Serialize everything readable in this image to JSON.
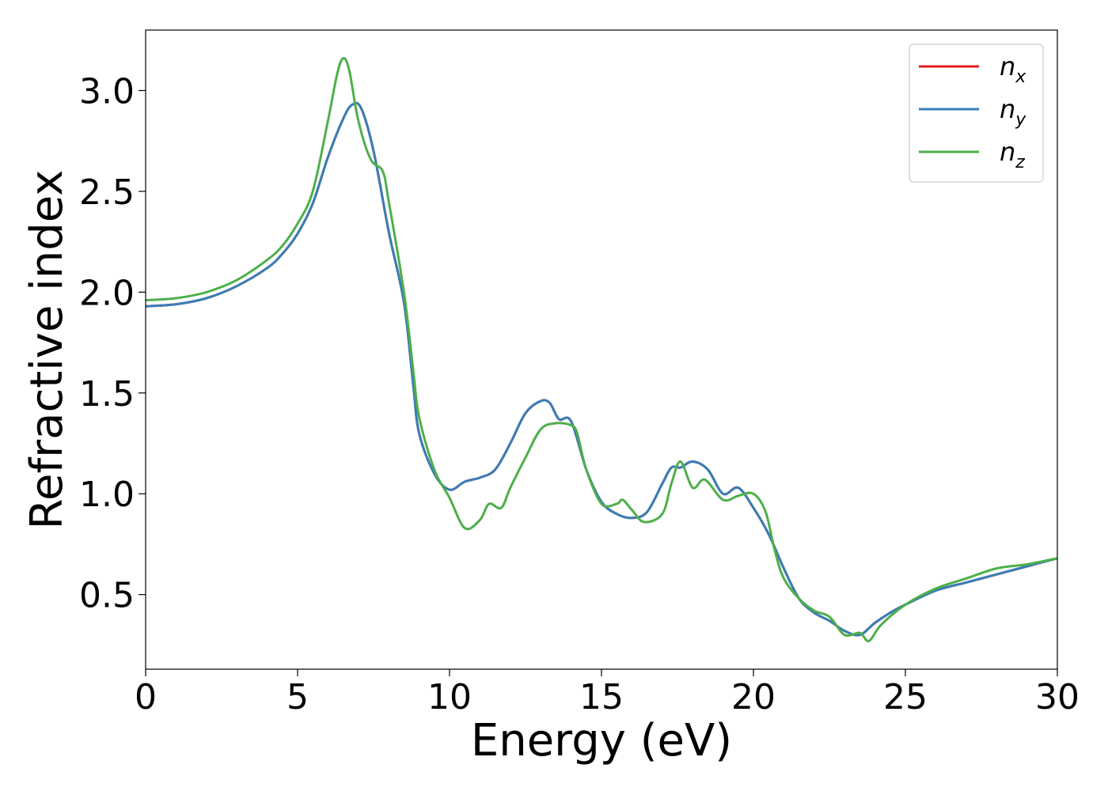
{
  "chart_data": {
    "type": "line",
    "xlabel": "Energy (eV)",
    "ylabel": "Refractive index",
    "xlim": [
      0,
      30
    ],
    "ylim": [
      0.13,
      3.3
    ],
    "x_ticks": [
      "0",
      "5",
      "10",
      "15",
      "20",
      "25",
      "30"
    ],
    "y_ticks": [
      "0.5",
      "1.0",
      "1.5",
      "2.0",
      "2.5",
      "3.0"
    ],
    "grid": false,
    "legend_position": "top-right",
    "series": [
      {
        "name": "n_x",
        "label_base": "n",
        "label_sub": "x",
        "color": "#e41a1c",
        "points": [
          [
            0,
            1.93
          ],
          [
            1,
            1.94
          ],
          [
            2,
            1.97
          ],
          [
            3,
            2.03
          ],
          [
            4,
            2.12
          ],
          [
            4.5,
            2.19
          ],
          [
            5,
            2.29
          ],
          [
            5.5,
            2.44
          ],
          [
            6,
            2.67
          ],
          [
            6.5,
            2.86
          ],
          [
            6.8,
            2.93
          ],
          [
            7.1,
            2.91
          ],
          [
            7.5,
            2.7
          ],
          [
            8,
            2.3
          ],
          [
            8.5,
            1.95
          ],
          [
            8.8,
            1.55
          ],
          [
            9,
            1.3
          ],
          [
            9.5,
            1.1
          ],
          [
            10,
            1.02
          ],
          [
            10.5,
            1.06
          ],
          [
            11,
            1.08
          ],
          [
            11.5,
            1.12
          ],
          [
            12,
            1.25
          ],
          [
            12.5,
            1.4
          ],
          [
            13,
            1.46
          ],
          [
            13.3,
            1.45
          ],
          [
            13.6,
            1.37
          ],
          [
            14,
            1.36
          ],
          [
            14.5,
            1.12
          ],
          [
            15,
            0.96
          ],
          [
            15.5,
            0.9
          ],
          [
            16,
            0.88
          ],
          [
            16.5,
            0.91
          ],
          [
            17,
            1.05
          ],
          [
            17.3,
            1.13
          ],
          [
            17.6,
            1.13
          ],
          [
            18,
            1.16
          ],
          [
            18.5,
            1.12
          ],
          [
            19,
            1.0
          ],
          [
            19.5,
            1.03
          ],
          [
            20,
            0.93
          ],
          [
            20.5,
            0.8
          ],
          [
            21,
            0.63
          ],
          [
            21.5,
            0.48
          ],
          [
            22,
            0.41
          ],
          [
            22.5,
            0.37
          ],
          [
            23,
            0.32
          ],
          [
            23.5,
            0.3
          ],
          [
            24,
            0.36
          ],
          [
            24.5,
            0.41
          ],
          [
            25,
            0.45
          ],
          [
            26,
            0.52
          ],
          [
            27,
            0.56
          ],
          [
            28,
            0.6
          ],
          [
            29,
            0.64
          ],
          [
            30,
            0.68
          ]
        ]
      },
      {
        "name": "n_y",
        "label_base": "n",
        "label_sub": "y",
        "color": "#377eb8",
        "points": [
          [
            0,
            1.93
          ],
          [
            1,
            1.94
          ],
          [
            2,
            1.97
          ],
          [
            3,
            2.03
          ],
          [
            4,
            2.12
          ],
          [
            4.5,
            2.19
          ],
          [
            5,
            2.29
          ],
          [
            5.5,
            2.44
          ],
          [
            6,
            2.67
          ],
          [
            6.5,
            2.86
          ],
          [
            6.8,
            2.93
          ],
          [
            7.1,
            2.91
          ],
          [
            7.5,
            2.7
          ],
          [
            8,
            2.3
          ],
          [
            8.5,
            1.95
          ],
          [
            8.8,
            1.55
          ],
          [
            9,
            1.3
          ],
          [
            9.5,
            1.1
          ],
          [
            10,
            1.02
          ],
          [
            10.5,
            1.06
          ],
          [
            11,
            1.08
          ],
          [
            11.5,
            1.12
          ],
          [
            12,
            1.25
          ],
          [
            12.5,
            1.4
          ],
          [
            13,
            1.46
          ],
          [
            13.3,
            1.45
          ],
          [
            13.6,
            1.37
          ],
          [
            14,
            1.36
          ],
          [
            14.5,
            1.12
          ],
          [
            15,
            0.96
          ],
          [
            15.5,
            0.9
          ],
          [
            16,
            0.88
          ],
          [
            16.5,
            0.91
          ],
          [
            17,
            1.05
          ],
          [
            17.3,
            1.13
          ],
          [
            17.6,
            1.13
          ],
          [
            18,
            1.16
          ],
          [
            18.5,
            1.12
          ],
          [
            19,
            1.0
          ],
          [
            19.5,
            1.03
          ],
          [
            20,
            0.93
          ],
          [
            20.5,
            0.8
          ],
          [
            21,
            0.63
          ],
          [
            21.5,
            0.48
          ],
          [
            22,
            0.41
          ],
          [
            22.5,
            0.37
          ],
          [
            23,
            0.32
          ],
          [
            23.5,
            0.3
          ],
          [
            24,
            0.36
          ],
          [
            24.5,
            0.41
          ],
          [
            25,
            0.45
          ],
          [
            26,
            0.52
          ],
          [
            27,
            0.56
          ],
          [
            28,
            0.6
          ],
          [
            29,
            0.64
          ],
          [
            30,
            0.68
          ]
        ]
      },
      {
        "name": "n_z",
        "label_base": "n",
        "label_sub": "z",
        "color": "#4daf4a",
        "points": [
          [
            0,
            1.96
          ],
          [
            1,
            1.97
          ],
          [
            2,
            2.0
          ],
          [
            3,
            2.06
          ],
          [
            4,
            2.16
          ],
          [
            4.5,
            2.23
          ],
          [
            5,
            2.34
          ],
          [
            5.5,
            2.5
          ],
          [
            6,
            2.85
          ],
          [
            6.3,
            3.08
          ],
          [
            6.5,
            3.16
          ],
          [
            6.7,
            3.1
          ],
          [
            7,
            2.85
          ],
          [
            7.4,
            2.66
          ],
          [
            7.8,
            2.6
          ],
          [
            8,
            2.45
          ],
          [
            8.5,
            2.0
          ],
          [
            8.8,
            1.62
          ],
          [
            9,
            1.38
          ],
          [
            9.5,
            1.12
          ],
          [
            10,
            0.98
          ],
          [
            10.5,
            0.83
          ],
          [
            11,
            0.87
          ],
          [
            11.3,
            0.95
          ],
          [
            11.7,
            0.93
          ],
          [
            12,
            1.03
          ],
          [
            12.5,
            1.18
          ],
          [
            13,
            1.32
          ],
          [
            13.5,
            1.35
          ],
          [
            14,
            1.34
          ],
          [
            14.2,
            1.3
          ],
          [
            14.5,
            1.12
          ],
          [
            15,
            0.95
          ],
          [
            15.5,
            0.95
          ],
          [
            15.7,
            0.97
          ],
          [
            16,
            0.92
          ],
          [
            16.4,
            0.86
          ],
          [
            17,
            0.9
          ],
          [
            17.3,
            1.05
          ],
          [
            17.6,
            1.16
          ],
          [
            18,
            1.03
          ],
          [
            18.4,
            1.07
          ],
          [
            19,
            0.97
          ],
          [
            19.5,
            0.99
          ],
          [
            20,
            1.0
          ],
          [
            20.4,
            0.91
          ],
          [
            20.7,
            0.72
          ],
          [
            21,
            0.58
          ],
          [
            21.5,
            0.48
          ],
          [
            22,
            0.42
          ],
          [
            22.5,
            0.39
          ],
          [
            23,
            0.3
          ],
          [
            23.5,
            0.31
          ],
          [
            23.8,
            0.27
          ],
          [
            24.2,
            0.35
          ],
          [
            25,
            0.45
          ],
          [
            26,
            0.53
          ],
          [
            27,
            0.58
          ],
          [
            28,
            0.63
          ],
          [
            29,
            0.65
          ],
          [
            30,
            0.68
          ]
        ]
      }
    ]
  }
}
